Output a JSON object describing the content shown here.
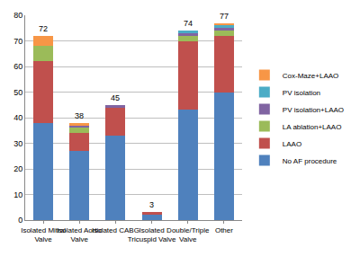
{
  "chart_data": {
    "type": "bar",
    "stacked": true,
    "grid": true,
    "legend": "right",
    "categories": [
      "Isolated Mitral Valve",
      "Isolated Aortic Valve",
      "Isolated CABG",
      "Isolated Tricuspid Valve",
      "Double/Triple Valve",
      "Other"
    ],
    "series": [
      {
        "name": "No AF procedure",
        "color": "#4f81bd",
        "values": [
          38,
          27,
          33,
          2,
          43,
          50
        ]
      },
      {
        "name": "LAAO",
        "color": "#c0504d",
        "values": [
          24,
          7,
          11,
          1,
          27,
          22
        ]
      },
      {
        "name": "LA ablation+LAAO",
        "color": "#9bbb59",
        "values": [
          6,
          2,
          0,
          0,
          2,
          2
        ]
      },
      {
        "name": "PV isolation+LAAO",
        "color": "#8064a2",
        "values": [
          0,
          1,
          1,
          0,
          1,
          1
        ]
      },
      {
        "name": "PV isolation",
        "color": "#4bacc6",
        "values": [
          0,
          0,
          0,
          0,
          1,
          1
        ]
      },
      {
        "name": "Cox-Maze+LAAO",
        "color": "#f79646",
        "values": [
          4,
          1,
          0,
          0,
          0,
          1
        ]
      }
    ],
    "totals": [
      72,
      38,
      45,
      3,
      74,
      77
    ],
    "ylim": [
      0,
      80
    ],
    "yticks": [
      0,
      10,
      20,
      30,
      40,
      50,
      60,
      70,
      80
    ]
  }
}
